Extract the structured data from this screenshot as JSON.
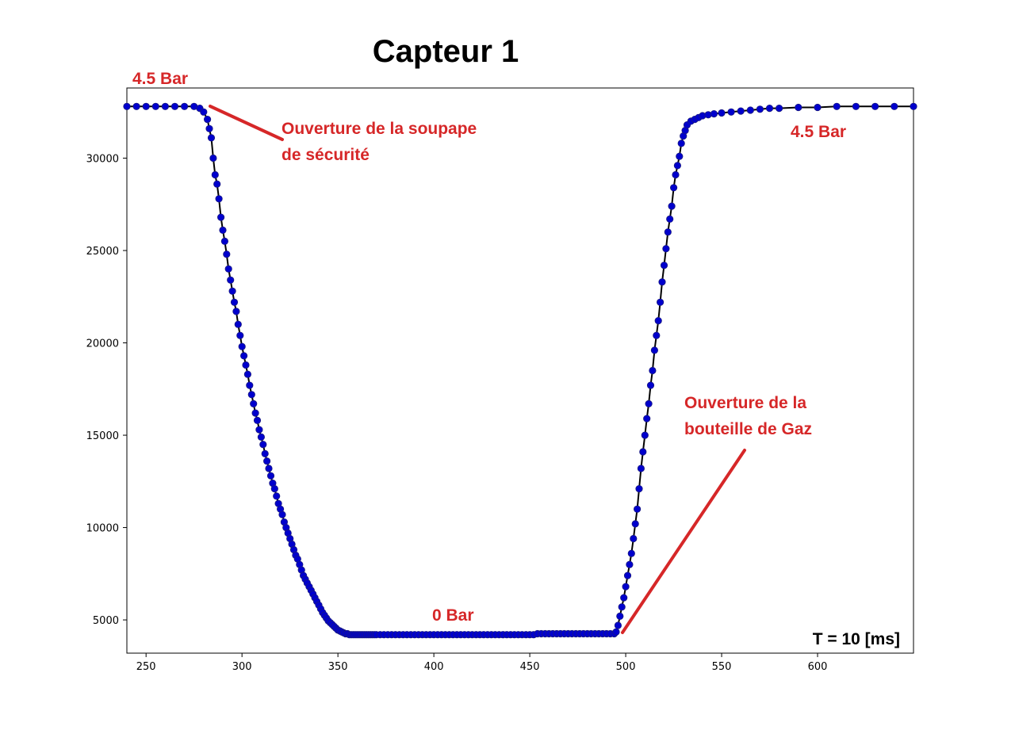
{
  "colors": {
    "annotation": "#d62728",
    "marker": "#0000cd",
    "marker_edge": "#1a1a80",
    "line": "#000000"
  },
  "chart_data": {
    "type": "line",
    "title": "Capteur 1",
    "xlabel": "",
    "ylabel": "",
    "xlim": [
      240,
      650
    ],
    "ylim": [
      3200,
      33800
    ],
    "xticks": [
      250,
      300,
      350,
      400,
      450,
      500,
      550,
      600
    ],
    "yticks": [
      5000,
      10000,
      15000,
      20000,
      25000,
      30000
    ],
    "grid": false,
    "series": [
      {
        "marker": "circle",
        "x": [
          240,
          245,
          250,
          255,
          260,
          265,
          270,
          275,
          278,
          280,
          282,
          283,
          284,
          285,
          286,
          287,
          288,
          289,
          290,
          291,
          292,
          293,
          294,
          295,
          296,
          297,
          298,
          299,
          300,
          301,
          302,
          303,
          304,
          305,
          306,
          307,
          308,
          309,
          310,
          311,
          312,
          313,
          314,
          315,
          316,
          317,
          318,
          319,
          320,
          321,
          322,
          323,
          324,
          325,
          326,
          327,
          328,
          329,
          330,
          331,
          332,
          333,
          334,
          335,
          336,
          337,
          338,
          339,
          340,
          341,
          342,
          343,
          344,
          345,
          346,
          347,
          348,
          349,
          350,
          351,
          352,
          353,
          354,
          355,
          356,
          357,
          358,
          359,
          360,
          361,
          362,
          363,
          364,
          365,
          366,
          367,
          368,
          369,
          370,
          372,
          374,
          376,
          378,
          380,
          382,
          384,
          386,
          388,
          390,
          392,
          394,
          396,
          398,
          400,
          402,
          404,
          406,
          408,
          410,
          412,
          414,
          416,
          418,
          420,
          422,
          424,
          426,
          428,
          430,
          432,
          434,
          436,
          438,
          440,
          442,
          444,
          446,
          448,
          450,
          452,
          454,
          456,
          458,
          460,
          462,
          464,
          466,
          468,
          470,
          472,
          474,
          476,
          478,
          480,
          482,
          484,
          486,
          488,
          490,
          492,
          494,
          495,
          496,
          497,
          498,
          499,
          500,
          501,
          502,
          503,
          504,
          505,
          506,
          507,
          508,
          509,
          510,
          511,
          512,
          513,
          514,
          515,
          516,
          517,
          518,
          519,
          520,
          521,
          522,
          523,
          524,
          525,
          526,
          527,
          528,
          529,
          530,
          531,
          532,
          534,
          536,
          538,
          540,
          543,
          546,
          550,
          555,
          560,
          565,
          570,
          575,
          580,
          590,
          600,
          610,
          620,
          630,
          640,
          650
        ],
        "y": [
          32800,
          32800,
          32800,
          32800,
          32800,
          32800,
          32800,
          32800,
          32700,
          32500,
          32100,
          31600,
          31100,
          30000,
          29100,
          28600,
          27800,
          26800,
          26100,
          25500,
          24800,
          24000,
          23400,
          22800,
          22200,
          21700,
          21000,
          20400,
          19800,
          19300,
          18800,
          18300,
          17700,
          17200,
          16700,
          16200,
          15800,
          15300,
          14900,
          14500,
          14000,
          13600,
          13200,
          12800,
          12400,
          12100,
          11700,
          11300,
          11000,
          10700,
          10300,
          10000,
          9700,
          9400,
          9100,
          8800,
          8500,
          8300,
          8000,
          7700,
          7400,
          7200,
          7000,
          6800,
          6600,
          6400,
          6200,
          6000,
          5800,
          5600,
          5400,
          5250,
          5100,
          4950,
          4850,
          4750,
          4650,
          4550,
          4450,
          4400,
          4350,
          4300,
          4250,
          4250,
          4200,
          4200,
          4200,
          4200,
          4200,
          4200,
          4200,
          4200,
          4200,
          4200,
          4200,
          4200,
          4200,
          4200,
          4200,
          4200,
          4200,
          4200,
          4200,
          4200,
          4200,
          4200,
          4200,
          4200,
          4200,
          4200,
          4200,
          4200,
          4200,
          4200,
          4200,
          4200,
          4200,
          4200,
          4200,
          4200,
          4200,
          4200,
          4200,
          4200,
          4200,
          4200,
          4200,
          4200,
          4200,
          4200,
          4200,
          4200,
          4200,
          4200,
          4200,
          4200,
          4200,
          4200,
          4200,
          4200,
          4250,
          4250,
          4250,
          4250,
          4250,
          4250,
          4250,
          4250,
          4250,
          4250,
          4250,
          4250,
          4250,
          4250,
          4250,
          4250,
          4250,
          4250,
          4250,
          4250,
          4250,
          4350,
          4700,
          5200,
          5700,
          6200,
          6800,
          7400,
          8000,
          8600,
          9400,
          10200,
          11000,
          12100,
          13200,
          14100,
          15000,
          15900,
          16700,
          17700,
          18500,
          19600,
          20400,
          21200,
          22200,
          23300,
          24200,
          25100,
          26000,
          26700,
          27400,
          28400,
          29100,
          29600,
          30100,
          30800,
          31200,
          31500,
          31800,
          32000,
          32100,
          32200,
          32300,
          32350,
          32400,
          32450,
          32500,
          32550,
          32600,
          32650,
          32700,
          32700,
          32750,
          32750,
          32800,
          32800,
          32800,
          32800,
          32800
        ]
      }
    ],
    "annotations": [
      {
        "id": "top_left",
        "lines": [
          "4.5 Bar"
        ]
      },
      {
        "id": "soupape",
        "lines": [
          "Ouverture de la soupape",
          "de sécurité"
        ]
      },
      {
        "id": "top_right",
        "lines": [
          "4.5 Bar"
        ]
      },
      {
        "id": "bottom",
        "lines": [
          "0 Bar"
        ]
      },
      {
        "id": "gaz",
        "lines": [
          "Ouverture de la",
          "bouteille de Gaz"
        ]
      }
    ],
    "period_label": "T = 10 [ms]"
  }
}
